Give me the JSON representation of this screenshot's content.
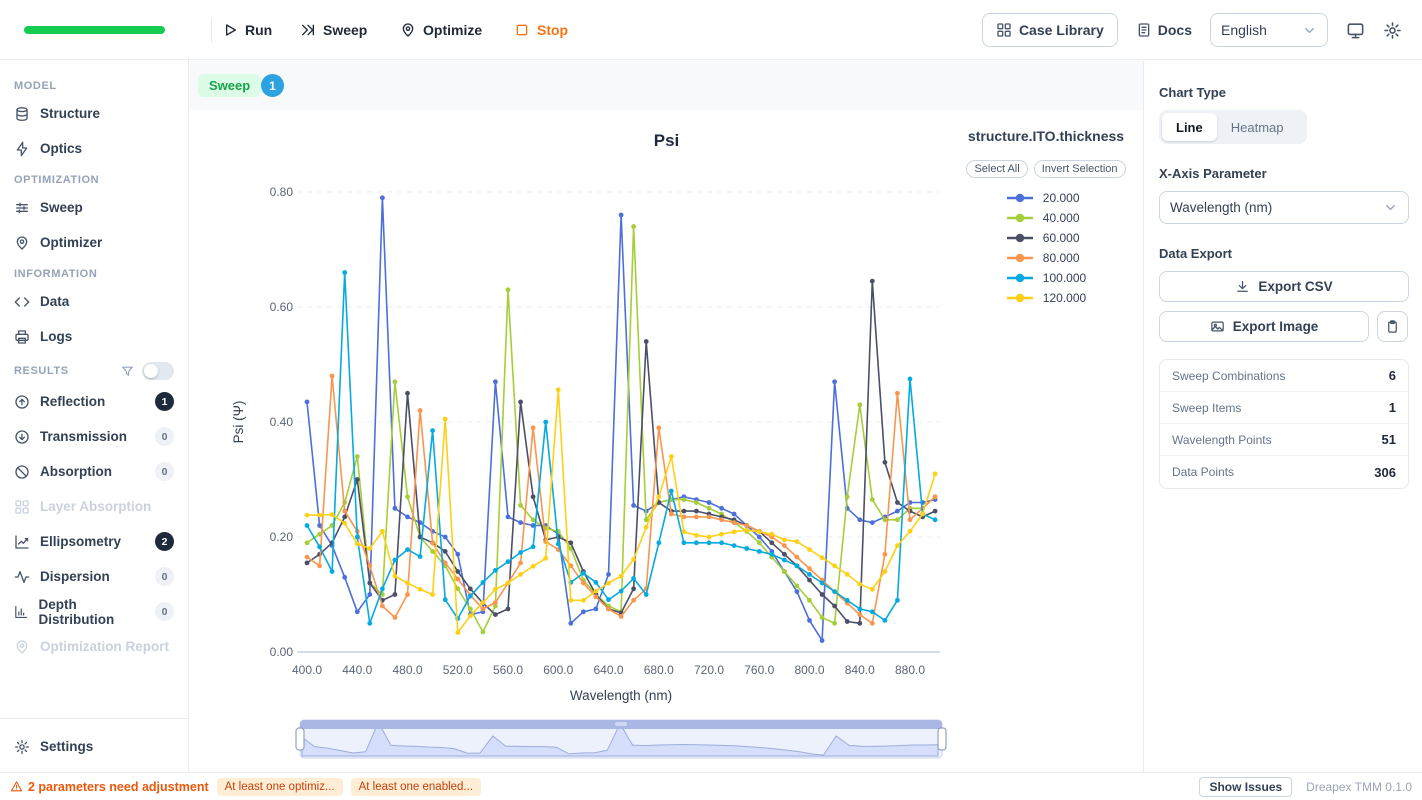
{
  "topbar": {
    "run": "Run",
    "sweep": "Sweep",
    "optimize": "Optimize",
    "stop": "Stop",
    "case_library": "Case Library",
    "docs": "Docs",
    "language": "English"
  },
  "sidebar": {
    "sections": [
      {
        "label": "MODEL",
        "items": [
          {
            "label": "Structure"
          },
          {
            "label": "Optics"
          }
        ]
      },
      {
        "label": "OPTIMIZATION",
        "items": [
          {
            "label": "Sweep"
          },
          {
            "label": "Optimizer"
          }
        ]
      },
      {
        "label": "INFORMATION",
        "items": [
          {
            "label": "Data"
          },
          {
            "label": "Logs"
          }
        ]
      },
      {
        "label": "RESULTS",
        "items": [
          {
            "label": "Reflection",
            "badge": "1"
          },
          {
            "label": "Transmission",
            "badge": "0"
          },
          {
            "label": "Absorption",
            "badge": "0"
          },
          {
            "label": "Layer Absorption"
          },
          {
            "label": "Ellipsometry",
            "badge": "2"
          },
          {
            "label": "Dispersion",
            "badge": "0"
          },
          {
            "label": "Depth Distribution",
            "badge": "0"
          },
          {
            "label": "Optimization Report"
          }
        ]
      }
    ],
    "settings": "Settings"
  },
  "header": {
    "badge": "Sweep",
    "count": "1"
  },
  "chart_data": {
    "type": "line",
    "title": "Psi",
    "xlabel": "Wavelength (nm)",
    "ylabel": "Psi (Ψ)",
    "legend_title": "structure.ITO.thickness",
    "select_all": "Select All",
    "invert_selection": "Invert Selection",
    "xlim": [
      400,
      900
    ],
    "ylim": [
      0,
      0.8
    ],
    "xticks": [
      "400.0",
      "440.0",
      "480.0",
      "520.0",
      "560.0",
      "600.0",
      "640.0",
      "680.0",
      "720.0",
      "760.0",
      "800.0",
      "840.0",
      "880.0"
    ],
    "yticks": [
      "0.00",
      "0.20",
      "0.40",
      "0.60",
      "0.80"
    ],
    "x": [
      400,
      410,
      420,
      430,
      440,
      450,
      460,
      470,
      480,
      490,
      500,
      510,
      520,
      530,
      540,
      550,
      560,
      570,
      580,
      590,
      600,
      610,
      620,
      630,
      640,
      650,
      660,
      670,
      680,
      690,
      700,
      710,
      720,
      730,
      740,
      750,
      760,
      770,
      780,
      790,
      800,
      810,
      820,
      830,
      840,
      850,
      860,
      870,
      880,
      890,
      900
    ],
    "series": [
      {
        "name": "20.000",
        "color": "#4c6fd9",
        "values": [
          0.435,
          0.22,
          0.185,
          0.13,
          0.07,
          0.1,
          0.79,
          0.25,
          0.235,
          0.225,
          0.21,
          0.2,
          0.17,
          0.065,
          0.07,
          0.47,
          0.235,
          0.225,
          0.22,
          0.22,
          0.205,
          0.05,
          0.07,
          0.075,
          0.135,
          0.76,
          0.255,
          0.245,
          0.26,
          0.265,
          0.27,
          0.265,
          0.26,
          0.25,
          0.24,
          0.22,
          0.2,
          0.175,
          0.14,
          0.105,
          0.055,
          0.02,
          0.47,
          0.25,
          0.23,
          0.225,
          0.235,
          0.245,
          0.26,
          0.26,
          0.265
        ]
      },
      {
        "name": "40.000",
        "color": "#a5ce39",
        "values": [
          0.19,
          0.205,
          0.22,
          0.26,
          0.34,
          0.12,
          0.1,
          0.47,
          0.27,
          0.2,
          0.175,
          0.15,
          0.11,
          0.075,
          0.035,
          0.08,
          0.63,
          0.255,
          0.23,
          0.215,
          0.21,
          0.18,
          0.125,
          0.1,
          0.08,
          0.07,
          0.74,
          0.23,
          0.26,
          0.265,
          0.265,
          0.26,
          0.25,
          0.24,
          0.225,
          0.21,
          0.19,
          0.165,
          0.14,
          0.115,
          0.09,
          0.06,
          0.05,
          0.27,
          0.43,
          0.265,
          0.23,
          0.23,
          0.25,
          0.25,
          0.27
        ]
      },
      {
        "name": "60.000",
        "color": "#4b4f68",
        "values": [
          0.155,
          0.17,
          0.19,
          0.235,
          0.3,
          0.12,
          0.09,
          0.1,
          0.45,
          0.2,
          0.19,
          0.175,
          0.14,
          0.11,
          0.085,
          0.065,
          0.075,
          0.435,
          0.27,
          0.195,
          0.2,
          0.19,
          0.14,
          0.1,
          0.075,
          0.068,
          0.11,
          0.54,
          0.26,
          0.245,
          0.245,
          0.245,
          0.24,
          0.235,
          0.23,
          0.22,
          0.21,
          0.19,
          0.17,
          0.15,
          0.125,
          0.1,
          0.08,
          0.053,
          0.05,
          0.645,
          0.33,
          0.26,
          0.245,
          0.235,
          0.245
        ]
      },
      {
        "name": "80.000",
        "color": "#f8964f",
        "values": [
          0.165,
          0.15,
          0.48,
          0.245,
          0.21,
          0.15,
          0.08,
          0.06,
          0.1,
          0.42,
          0.19,
          0.155,
          0.127,
          0.099,
          0.075,
          0.086,
          0.12,
          0.155,
          0.39,
          0.192,
          0.178,
          0.15,
          0.12,
          0.096,
          0.075,
          0.062,
          0.09,
          0.11,
          0.39,
          0.24,
          0.235,
          0.235,
          0.235,
          0.23,
          0.225,
          0.22,
          0.21,
          0.2,
          0.185,
          0.165,
          0.145,
          0.125,
          0.105,
          0.085,
          0.065,
          0.05,
          0.17,
          0.45,
          0.23,
          0.25,
          0.27
        ]
      },
      {
        "name": "100.000",
        "color": "#06aade",
        "values": [
          0.22,
          0.183,
          0.14,
          0.66,
          0.2,
          0.05,
          0.11,
          0.16,
          0.178,
          0.166,
          0.385,
          0.091,
          0.058,
          0.097,
          0.121,
          0.142,
          0.157,
          0.173,
          0.183,
          0.4,
          0.188,
          0.121,
          0.137,
          0.121,
          0.091,
          0.106,
          0.128,
          0.1,
          0.19,
          0.28,
          0.19,
          0.19,
          0.19,
          0.19,
          0.185,
          0.18,
          0.175,
          0.17,
          0.16,
          0.15,
          0.135,
          0.12,
          0.105,
          0.09,
          0.075,
          0.07,
          0.055,
          0.09,
          0.475,
          0.24,
          0.23
        ]
      },
      {
        "name": "120.000",
        "color": "#fdd017",
        "values": [
          0.238,
          0.238,
          0.239,
          0.224,
          0.188,
          0.18,
          0.21,
          0.132,
          0.12,
          0.109,
          0.1,
          0.405,
          0.034,
          0.063,
          0.086,
          0.109,
          0.12,
          0.135,
          0.149,
          0.163,
          0.456,
          0.09,
          0.09,
          0.106,
          0.12,
          0.132,
          0.161,
          0.217,
          0.27,
          0.34,
          0.209,
          0.203,
          0.2,
          0.205,
          0.209,
          0.212,
          0.209,
          0.205,
          0.195,
          0.192,
          0.178,
          0.164,
          0.15,
          0.135,
          0.118,
          0.109,
          0.14,
          0.185,
          0.21,
          0.24,
          0.31
        ]
      }
    ],
    "grid": true,
    "legend_position": "right",
    "brush": true
  },
  "panel": {
    "chart_type_label": "Chart Type",
    "chart_types": [
      "Line",
      "Heatmap"
    ],
    "selected_chart_type": "Line",
    "xaxis_label": "X-Axis Parameter",
    "xaxis_value": "Wavelength (nm)",
    "data_export_label": "Data Export",
    "export_csv": "Export CSV",
    "export_image": "Export Image",
    "stats": [
      {
        "label": "Sweep Combinations",
        "value": "6"
      },
      {
        "label": "Sweep Items",
        "value": "1"
      },
      {
        "label": "Wavelength Points",
        "value": "51"
      },
      {
        "label": "Data Points",
        "value": "306"
      }
    ]
  },
  "statusbar": {
    "warning": "2 parameters need adjustment",
    "pills": [
      "At least one optimiz...",
      "At least one enabled..."
    ],
    "show_issues": "Show Issues",
    "version": "Dreapex TMM 0.1.0"
  },
  "colors": {
    "progress": "#15cb50",
    "stop": "#f97316",
    "sweep_badge_bg": "#dcfce7",
    "sweep_badge_text": "#16a34a",
    "count_bubble": "#2ba3e0",
    "warning": "#ea580c"
  }
}
